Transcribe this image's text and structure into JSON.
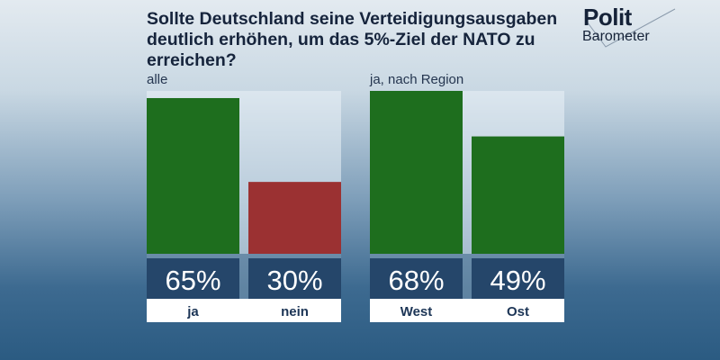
{
  "title": "Sollte Deutschland seine Verteidigungsausgaben deutlich erhöhen, um das 5%-Ziel der NATO zu erreichen?",
  "logo": {
    "line1": "Polit",
    "line2": "Barometer"
  },
  "colors": {
    "ja": "#1e6e1e",
    "nein": "#9b3132",
    "value_box": "#25466a",
    "title": "#16243c"
  },
  "chart_data": [
    {
      "type": "bar",
      "title": "alle",
      "categories": [
        "ja",
        "nein"
      ],
      "values": [
        65,
        30
      ],
      "value_labels": [
        "65%",
        "30%"
      ],
      "colors": [
        "#1e6e1e",
        "#9b3132"
      ],
      "ylim": [
        0,
        68
      ]
    },
    {
      "type": "bar",
      "title": "ja, nach Region",
      "categories": [
        "West",
        "Ost"
      ],
      "values": [
        68,
        49
      ],
      "value_labels": [
        "68%",
        "49%"
      ],
      "colors": [
        "#1e6e1e",
        "#1e6e1e"
      ],
      "ylim": [
        0,
        68
      ]
    }
  ]
}
